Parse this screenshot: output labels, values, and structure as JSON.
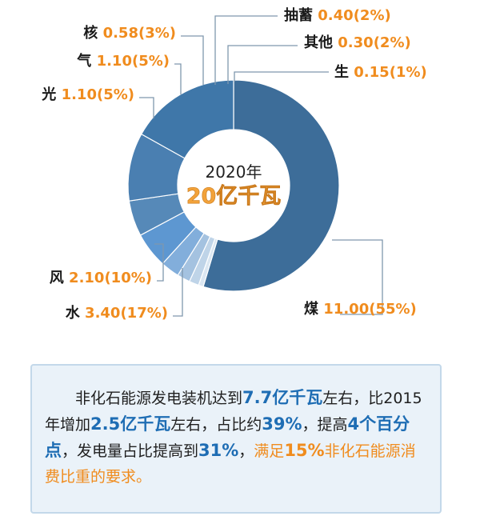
{
  "chart_data": {
    "type": "pie",
    "center": {
      "year": "2020年",
      "total": "20亿千瓦"
    },
    "slices": [
      {
        "name": "煤",
        "value": 11.0,
        "label": "11.00(55%)",
        "color": "#3d6d99"
      },
      {
        "name": "生",
        "value": 0.15,
        "label": "0.15(1%)",
        "color": "#dbe7f2"
      },
      {
        "name": "其他",
        "value": 0.3,
        "label": "0.30(2%)",
        "color": "#bfd4e8"
      },
      {
        "name": "抽蓄",
        "value": 0.4,
        "label": "0.40(2%)",
        "color": "#a4c2e0"
      },
      {
        "name": "核",
        "value": 0.58,
        "label": "0.58(3%)",
        "color": "#82aedb"
      },
      {
        "name": "气",
        "value": 1.1,
        "label": "1.10(5%)",
        "color": "#5d97d1"
      },
      {
        "name": "光",
        "value": 1.1,
        "label": "1.10(5%)",
        "color": "#5689b8"
      },
      {
        "name": "风",
        "value": 2.1,
        "label": "2.10(10%)",
        "color": "#4a7fb1"
      },
      {
        "name": "水",
        "value": 3.4,
        "label": "3.40(17%)",
        "color": "#3f77a9"
      }
    ]
  },
  "note": {
    "line1_a": "非化石能源发电装机达到",
    "line1_hl": "7.7亿千瓦",
    "line1_b": "左右，",
    "line2_a": "比2015年增加",
    "line2_hl": "2.5亿千瓦",
    "line2_b": "左右，占比约",
    "line2_hl2": "39%",
    "line2_c": "，",
    "line3_a": "提高",
    "line3_hl": "4个百分点",
    "line3_b": "，发电量占比提高到",
    "line3_hl2": "31%",
    "line3_c": "，",
    "line3_d": "满足",
    "line4_hl": "15%",
    "line4_a": "非化石能源消费比重的要求。"
  }
}
